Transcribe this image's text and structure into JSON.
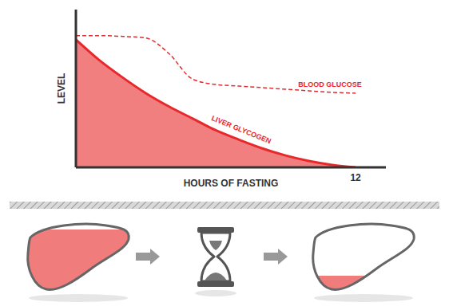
{
  "chart_data": {
    "type": "area",
    "xlabel": "HOURS OF FASTING",
    "ylabel": "LEVEL",
    "x": [
      0,
      1,
      2,
      3,
      4,
      5,
      6,
      7,
      8,
      9,
      10,
      11,
      12
    ],
    "xlim": [
      0,
      13.3
    ],
    "xticks": [
      12
    ],
    "ylim": [
      0,
      100
    ],
    "tick_labels": "x",
    "grid": false,
    "series": [
      {
        "name": "LIVER GLYCOGEN",
        "type": "area",
        "color": "#e8292b",
        "values": [
          81,
          68,
          57,
          47,
          38.5,
          31,
          23.5,
          17.5,
          12,
          7.5,
          4,
          1.5,
          0
        ]
      },
      {
        "name": "BLOOD GLUCOSE",
        "type": "line",
        "color": "#e8292b",
        "line_style": "dashed",
        "values": [
          83.5,
          83.5,
          83,
          82,
          72,
          56,
          52.5,
          51.5,
          50.5,
          49.5,
          48.5,
          47.5,
          47
        ]
      }
    ]
  }
}
